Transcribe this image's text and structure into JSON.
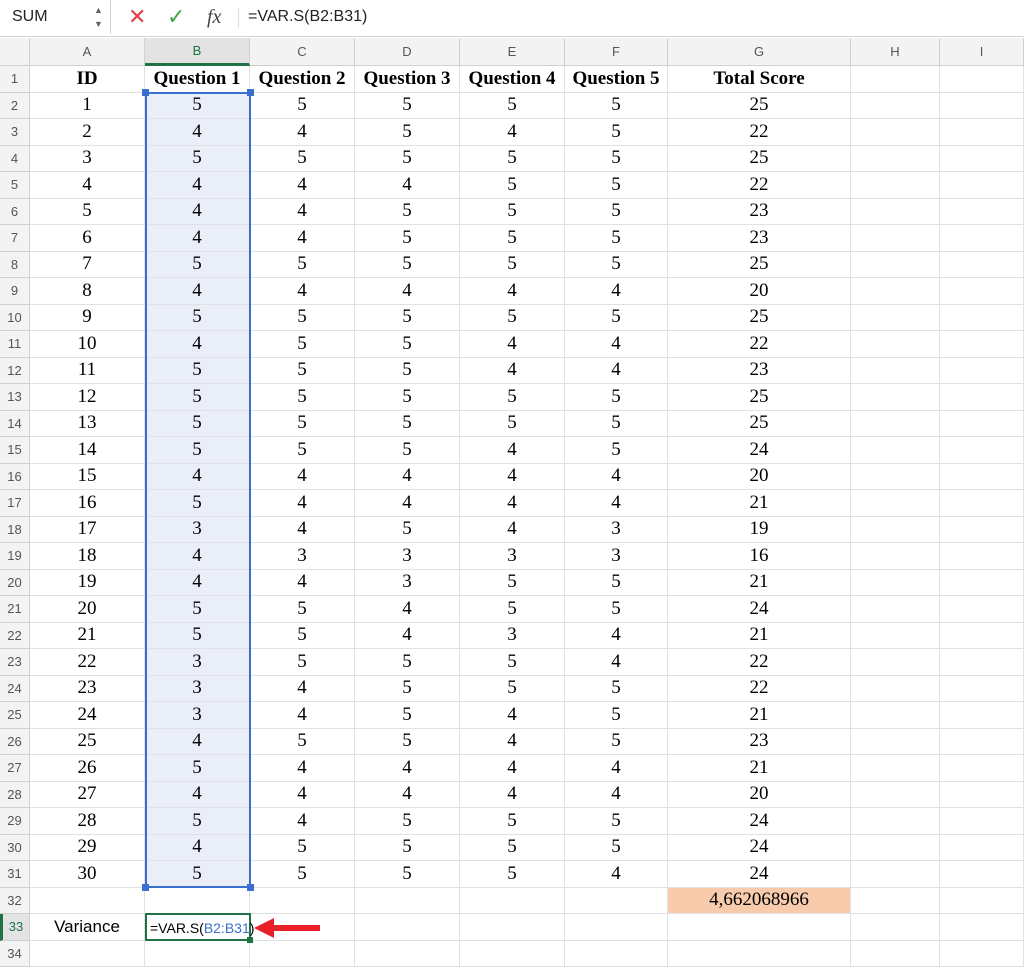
{
  "formula_bar": {
    "name_box": "SUM",
    "cancel_icon": "x-icon",
    "confirm_icon": "check-icon",
    "fx_label": "fx",
    "formula": "=VAR.S(B2:B31)"
  },
  "columns": [
    "A",
    "B",
    "C",
    "D",
    "E",
    "F",
    "G",
    "H",
    "I"
  ],
  "active_column": "B",
  "active_row": 33,
  "header_row": [
    "ID",
    "Question 1",
    "Question 2",
    "Question 3",
    "Question 4",
    "Question 5",
    "Total Score"
  ],
  "rows": [
    [
      "1",
      "5",
      "5",
      "5",
      "5",
      "5",
      "25"
    ],
    [
      "2",
      "4",
      "4",
      "5",
      "4",
      "5",
      "22"
    ],
    [
      "3",
      "5",
      "5",
      "5",
      "5",
      "5",
      "25"
    ],
    [
      "4",
      "4",
      "4",
      "4",
      "5",
      "5",
      "22"
    ],
    [
      "5",
      "4",
      "4",
      "5",
      "5",
      "5",
      "23"
    ],
    [
      "6",
      "4",
      "4",
      "5",
      "5",
      "5",
      "23"
    ],
    [
      "7",
      "5",
      "5",
      "5",
      "5",
      "5",
      "25"
    ],
    [
      "8",
      "4",
      "4",
      "4",
      "4",
      "4",
      "20"
    ],
    [
      "9",
      "5",
      "5",
      "5",
      "5",
      "5",
      "25"
    ],
    [
      "10",
      "4",
      "5",
      "5",
      "4",
      "4",
      "22"
    ],
    [
      "11",
      "5",
      "5",
      "5",
      "4",
      "4",
      "23"
    ],
    [
      "12",
      "5",
      "5",
      "5",
      "5",
      "5",
      "25"
    ],
    [
      "13",
      "5",
      "5",
      "5",
      "5",
      "5",
      "25"
    ],
    [
      "14",
      "5",
      "5",
      "5",
      "4",
      "5",
      "24"
    ],
    [
      "15",
      "4",
      "4",
      "4",
      "4",
      "4",
      "20"
    ],
    [
      "16",
      "5",
      "4",
      "4",
      "4",
      "4",
      "21"
    ],
    [
      "17",
      "3",
      "4",
      "5",
      "4",
      "3",
      "19"
    ],
    [
      "18",
      "4",
      "3",
      "3",
      "3",
      "3",
      "16"
    ],
    [
      "19",
      "4",
      "4",
      "3",
      "5",
      "5",
      "21"
    ],
    [
      "20",
      "5",
      "5",
      "4",
      "5",
      "5",
      "24"
    ],
    [
      "21",
      "5",
      "5",
      "4",
      "3",
      "4",
      "21"
    ],
    [
      "22",
      "3",
      "5",
      "5",
      "5",
      "4",
      "22"
    ],
    [
      "23",
      "3",
      "4",
      "5",
      "5",
      "5",
      "22"
    ],
    [
      "24",
      "3",
      "4",
      "5",
      "4",
      "5",
      "21"
    ],
    [
      "25",
      "4",
      "5",
      "5",
      "4",
      "5",
      "23"
    ],
    [
      "26",
      "5",
      "4",
      "4",
      "4",
      "4",
      "21"
    ],
    [
      "27",
      "4",
      "4",
      "4",
      "4",
      "4",
      "20"
    ],
    [
      "28",
      "5",
      "4",
      "5",
      "5",
      "5",
      "24"
    ],
    [
      "29",
      "4",
      "5",
      "5",
      "5",
      "5",
      "24"
    ],
    [
      "30",
      "5",
      "5",
      "5",
      "5",
      "4",
      "24"
    ]
  ],
  "row32": {
    "G": "4,662068966",
    "highlight_color": "#f8cbad"
  },
  "row33": {
    "A": "Variance",
    "B_prefix": "=VAR.S(",
    "B_ref": "B2:B31",
    "B_suffix": ")"
  },
  "visible_row_count": 34,
  "colors": {
    "selection": "#3a6fd0",
    "active": "#1f7244",
    "arrow": "#e8202a"
  }
}
